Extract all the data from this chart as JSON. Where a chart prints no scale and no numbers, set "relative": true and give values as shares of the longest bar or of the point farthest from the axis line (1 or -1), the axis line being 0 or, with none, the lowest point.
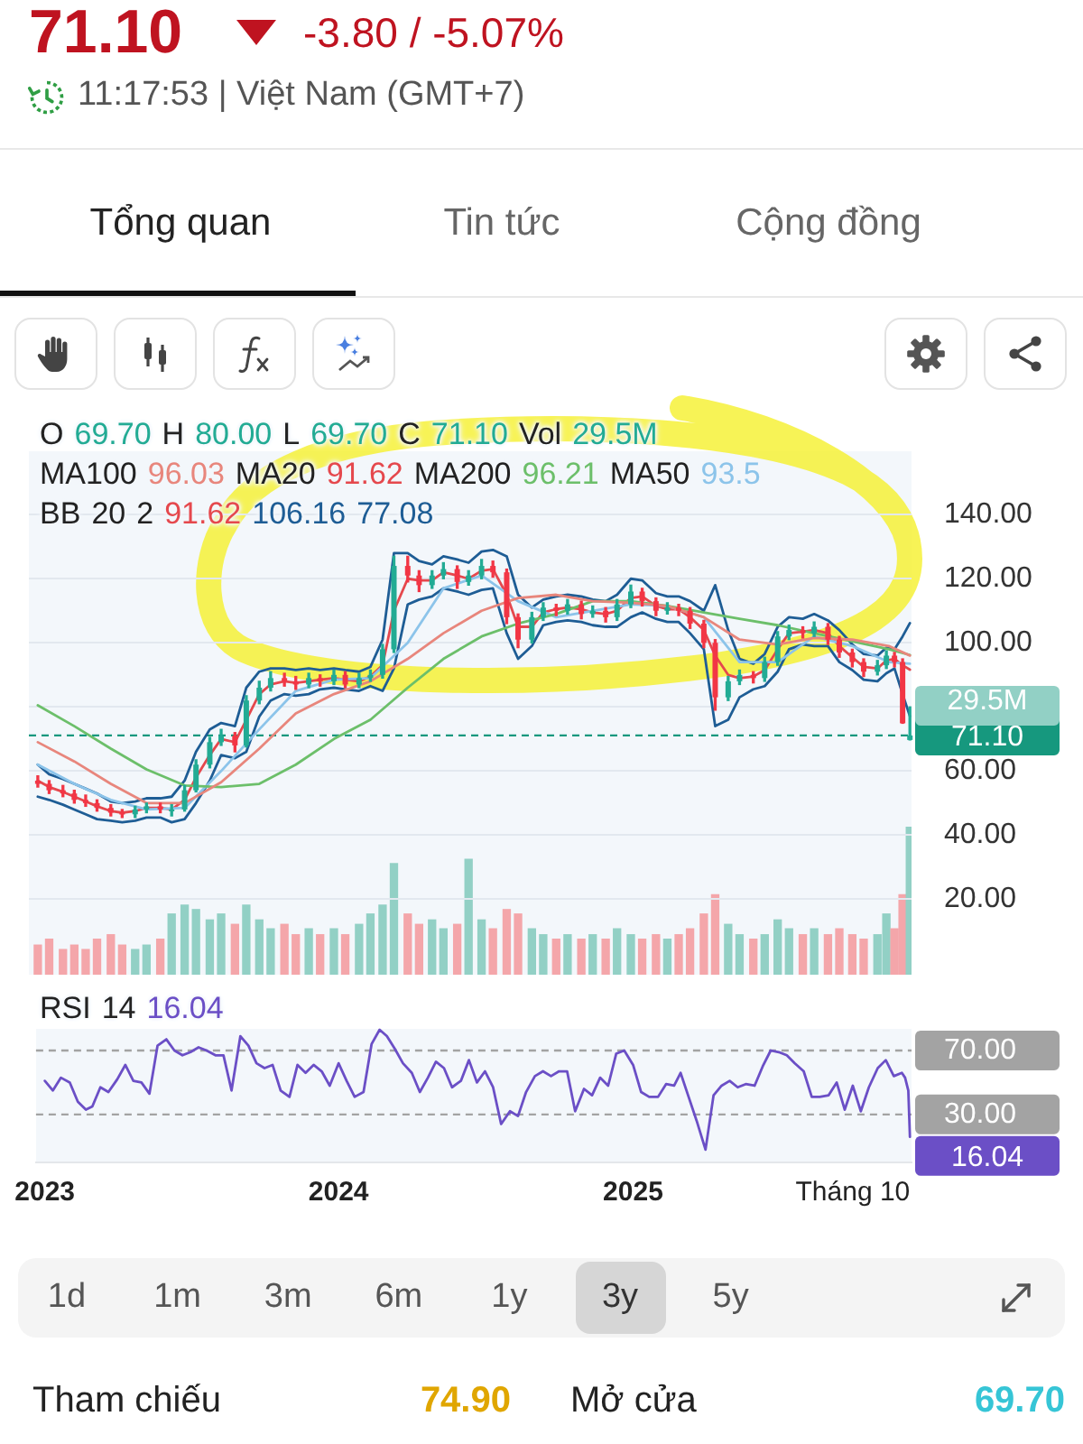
{
  "chart_data": [
    {
      "type": "other",
      "annotations": [
        "71.10",
        "-3.80 / -5.07%",
        "11:17:53 | Việt Nam (GMT+7)",
        "Tổng quan",
        "Tin tức",
        "Cộng đồng"
      ]
    },
    {
      "type": "candlestick",
      "x": [
        "2023-01-01",
        "2023-01-15",
        "2023-02-01",
        "2023-02-15",
        "2023-03-01",
        "2023-03-15",
        "2023-04-01",
        "2023-04-15",
        "2023-05-01",
        "2023-05-15",
        "2023-06-01",
        "2023-06-15",
        "2023-07-01",
        "2023-07-15",
        "2023-08-01",
        "2023-08-15",
        "2023-09-01",
        "2023-09-15",
        "2023-10-01",
        "2023-10-15",
        "2023-11-01",
        "2023-11-15",
        "2023-12-01",
        "2023-12-15",
        "2024-01-01",
        "2024-01-15",
        "2024-02-01",
        "2024-02-15",
        "2024-03-01",
        "2024-03-15",
        "2024-04-01",
        "2024-04-15",
        "2024-05-01",
        "2024-05-15",
        "2024-06-01",
        "2024-06-15",
        "2024-07-01",
        "2024-07-15",
        "2024-08-01",
        "2024-08-15",
        "2024-09-01",
        "2024-09-15",
        "2024-10-01",
        "2024-10-15",
        "2024-11-01",
        "2024-11-15",
        "2024-12-01",
        "2024-12-15",
        "2025-01-01",
        "2025-01-15",
        "2025-02-01",
        "2025-02-15",
        "2025-03-01",
        "2025-03-15",
        "2025-04-01",
        "2025-04-15",
        "2025-05-01",
        "2025-05-15",
        "2025-06-01",
        "2025-06-15",
        "2025-07-01",
        "2025-07-15",
        "2025-08-01",
        "2025-08-15",
        "2025-09-01",
        "2025-09-15",
        "2025-10-01",
        "2025-10-15",
        "2025-11-01",
        "2025-11-12",
        "2025-11-22",
        "2025-12-02",
        "2025-12-11"
      ],
      "ohlc": [
        [
          57,
          58.5,
          55,
          56
        ],
        [
          56,
          57,
          53,
          54
        ],
        [
          54,
          55.5,
          52,
          53
        ],
        [
          53,
          54,
          50,
          51
        ],
        [
          51,
          52.5,
          49,
          50
        ],
        [
          50,
          51,
          47.5,
          48.5
        ],
        [
          48.5,
          49.5,
          46,
          47
        ],
        [
          47,
          48,
          45.5,
          46.5
        ],
        [
          46.5,
          49,
          45.5,
          48
        ],
        [
          48,
          50,
          47,
          49
        ],
        [
          49,
          50,
          47,
          48
        ],
        [
          48,
          49.5,
          46,
          48
        ],
        [
          48,
          55.5,
          47.5,
          54
        ],
        [
          54,
          63.5,
          53.5,
          62
        ],
        [
          62,
          70.5,
          61,
          69
        ],
        [
          69,
          73,
          68,
          71
        ],
        [
          71,
          72,
          66,
          68
        ],
        [
          68,
          83.5,
          67.5,
          82
        ],
        [
          82,
          88,
          81,
          86
        ],
        [
          86,
          91,
          85,
          89
        ],
        [
          89,
          90.5,
          86.5,
          88
        ],
        [
          88,
          89.5,
          85.5,
          87
        ],
        [
          87,
          90.5,
          86,
          89
        ],
        [
          89,
          90,
          86.5,
          88
        ],
        [
          88,
          91.5,
          87,
          90
        ],
        [
          90,
          91,
          86,
          87
        ],
        [
          87,
          90.5,
          86,
          89
        ],
        [
          89,
          91.5,
          88,
          90
        ],
        [
          90,
          99.5,
          89,
          98
        ],
        [
          98,
          127,
          97,
          124
        ],
        [
          124,
          127,
          119,
          121
        ],
        [
          121,
          122.5,
          116,
          118
        ],
        [
          118,
          122.5,
          117,
          121
        ],
        [
          121,
          125,
          120,
          123
        ],
        [
          123,
          124,
          117,
          119
        ],
        [
          119,
          122.5,
          118,
          121
        ],
        [
          121,
          126,
          120,
          124
        ],
        [
          124,
          125.5,
          120.5,
          122
        ],
        [
          122,
          123,
          106,
          108
        ],
        [
          108,
          109,
          98.5,
          101
        ],
        [
          101,
          109.5,
          100,
          108
        ],
        [
          108,
          112.5,
          107,
          111
        ],
        [
          111,
          112,
          108.5,
          110
        ],
        [
          110,
          113.5,
          109,
          112
        ],
        [
          112,
          113,
          107.5,
          109
        ],
        [
          109,
          111.5,
          108,
          110
        ],
        [
          110,
          111,
          106.5,
          108
        ],
        [
          108,
          113.5,
          107,
          112
        ],
        [
          112,
          118,
          111,
          116
        ],
        [
          116,
          117,
          111.5,
          113
        ],
        [
          113,
          114,
          108.5,
          110
        ],
        [
          110,
          112.5,
          109,
          111
        ],
        [
          111,
          112,
          108.5,
          110
        ],
        [
          110,
          111,
          104.5,
          106
        ],
        [
          106,
          107,
          98.5,
          100
        ],
        [
          100,
          101,
          79,
          83
        ],
        [
          83,
          89.5,
          82,
          88
        ],
        [
          88,
          91.5,
          87,
          90
        ],
        [
          90,
          91,
          87.5,
          89
        ],
        [
          89,
          95.5,
          88,
          94
        ],
        [
          94,
          103.5,
          93,
          102
        ],
        [
          102,
          105.5,
          101,
          104
        ],
        [
          104,
          105,
          101.5,
          103
        ],
        [
          103,
          106.5,
          102,
          105
        ],
        [
          105,
          106,
          99.5,
          101
        ],
        [
          101,
          102,
          95.5,
          97
        ],
        [
          97,
          98,
          92.5,
          94
        ],
        [
          94,
          95,
          89.5,
          91
        ],
        [
          91,
          94.5,
          90,
          93
        ],
        [
          93,
          97.5,
          92,
          96
        ],
        [
          96,
          97,
          92.5,
          94
        ],
        [
          94,
          95,
          74.9,
          74.9
        ],
        [
          69.7,
          80,
          69.7,
          71.1
        ]
      ],
      "colors": [
        "#f23645",
        "#f23645",
        "#f23645",
        "#f23645",
        "#f23645",
        "#f23645",
        "#f23645",
        "#f23645",
        "#22ab94",
        "#22ab94",
        "#f23645",
        "#22ab94",
        "#22ab94",
        "#22ab94",
        "#22ab94",
        "#22ab94",
        "#f23645",
        "#22ab94",
        "#22ab94",
        "#22ab94",
        "#f23645",
        "#f23645",
        "#22ab94",
        "#f23645",
        "#22ab94",
        "#f23645",
        "#22ab94",
        "#22ab94",
        "#22ab94",
        "#22ab94",
        "#f23645",
        "#f23645",
        "#22ab94",
        "#22ab94",
        "#f23645",
        "#22ab94",
        "#22ab94",
        "#f23645",
        "#f23645",
        "#f23645",
        "#22ab94",
        "#22ab94",
        "#f23645",
        "#22ab94",
        "#f23645",
        "#22ab94",
        "#f23645",
        "#22ab94",
        "#22ab94",
        "#f23645",
        "#f23645",
        "#22ab94",
        "#f23645",
        "#f23645",
        "#f23645",
        "#f23645",
        "#22ab94",
        "#22ab94",
        "#f23645",
        "#22ab94",
        "#22ab94",
        "#22ab94",
        "#f23645",
        "#22ab94",
        "#f23645",
        "#f23645",
        "#f23645",
        "#f23645",
        "#22ab94",
        "#22ab94",
        "#f23645",
        "#f23645",
        "#22ab94"
      ],
      "series": [
        {
          "type": "line",
          "color": "#e8867c",
          "x": [
            "2023-01-01",
            "2023-02-15",
            "2023-04-01",
            "2023-05-15",
            "2023-07-01",
            "2023-08-15",
            "2023-10-01",
            "2023-11-15",
            "2024-01-01",
            "2024-02-15",
            "2024-04-01",
            "2024-05-15",
            "2024-07-01",
            "2024-08-15",
            "2024-10-01",
            "2024-11-15",
            "2025-01-01",
            "2025-02-15",
            "2025-04-01",
            "2025-05-15",
            "2025-07-01",
            "2025-08-15",
            "2025-10-01",
            "2025-11-15",
            "2025-12-11"
          ],
          "values": [
            69,
            63,
            56,
            50,
            50,
            56.5,
            67,
            78,
            84,
            88,
            95,
            103,
            110,
            114,
            115,
            113,
            112.5,
            111.5,
            108,
            101,
            99.5,
            101.5,
            101,
            99,
            96.03
          ]
        },
        {
          "type": "line",
          "color": "#6cbf6a",
          "x": [
            "2023-01-01",
            "2023-02-15",
            "2023-04-01",
            "2023-05-15",
            "2023-07-01",
            "2023-08-15",
            "2023-10-01",
            "2023-11-15",
            "2024-01-01",
            "2024-02-15",
            "2024-04-01",
            "2024-05-15",
            "2024-07-01",
            "2024-08-15",
            "2024-10-01",
            "2024-11-15",
            "2025-01-01",
            "2025-02-15",
            "2025-04-01",
            "2025-05-15",
            "2025-07-01",
            "2025-08-15",
            "2025-10-01",
            "2025-11-15",
            "2025-12-11"
          ],
          "values": [
            80.5,
            74,
            67,
            60.5,
            55.5,
            55,
            56,
            62,
            70,
            76,
            86,
            95,
            102,
            106,
            109,
            113,
            113,
            111.5,
            109.5,
            107.5,
            105.5,
            103,
            100.5,
            98,
            96.21
          ]
        },
        {
          "type": "line",
          "color": "#8cc4ea",
          "x": [
            "2023-01-01",
            "2023-02-15",
            "2023-04-01",
            "2023-05-15",
            "2023-07-01",
            "2023-08-15",
            "2023-10-01",
            "2023-11-15",
            "2024-01-01",
            "2024-02-15",
            "2024-04-01",
            "2024-05-15",
            "2024-07-01",
            "2024-08-15",
            "2024-10-01",
            "2024-11-15",
            "2025-01-01",
            "2025-02-15",
            "2025-04-01",
            "2025-05-15",
            "2025-07-01",
            "2025-08-15",
            "2025-10-01",
            "2025-11-15",
            "2025-12-11"
          ],
          "values": [
            62,
            56,
            51,
            48,
            48.5,
            60,
            73,
            85,
            88.5,
            89,
            100,
            117,
            121,
            113,
            108,
            110,
            112,
            111.5,
            108,
            94,
            94,
            102,
            99,
            94,
            93.5
          ]
        },
        {
          "type": "line",
          "color": "#e5484d",
          "values": [
            57,
            55,
            53.5,
            52,
            50.5,
            49,
            47.5,
            47,
            47.5,
            48.5,
            48.5,
            48,
            51,
            58,
            65,
            70,
            69,
            76,
            84,
            87,
            88,
            87.5,
            88,
            88.5,
            89,
            88.5,
            88,
            89.5,
            93,
            110,
            120,
            119.5,
            119.5,
            122,
            121,
            120,
            122.5,
            123,
            115,
            105,
            105,
            109.5,
            110.5,
            111,
            110.5,
            109.5,
            109,
            110,
            114,
            114.5,
            111.5,
            110.5,
            110.5,
            108,
            104,
            96,
            90,
            89,
            89.5,
            91.5,
            98,
            103,
            103.5,
            104,
            103,
            99,
            95.5,
            92.5,
            92,
            94.5,
            95,
            93,
            91.62
          ]
        },
        {
          "type": "line",
          "color": "#1e5d95",
          "values": [
            62,
            59,
            57.5,
            56,
            54.5,
            53,
            50.5,
            50,
            50.5,
            51.5,
            51.5,
            52,
            57,
            66,
            73,
            75,
            74,
            86,
            91,
            92,
            92,
            91.5,
            92,
            91.5,
            92,
            91.5,
            91,
            92.5,
            101,
            128,
            128,
            125.5,
            124.5,
            127,
            126,
            125,
            128.5,
            129,
            127,
            115,
            111,
            113.5,
            114.5,
            115,
            114.5,
            113.5,
            113,
            115,
            120,
            119.5,
            115.5,
            114.5,
            114.5,
            113,
            110,
            118,
            104,
            95,
            93.5,
            96.5,
            105,
            108,
            107.5,
            109,
            107,
            104,
            99.5,
            96.5,
            96,
            98.5,
            98,
            102,
            106.16
          ]
        },
        {
          "type": "line",
          "color": "#1e5d95",
          "values": [
            52,
            51,
            49.5,
            48,
            46.5,
            45,
            44.5,
            44,
            44.5,
            45.5,
            45.5,
            44,
            45,
            50,
            57,
            65,
            64,
            66,
            77,
            82,
            84,
            83.5,
            84,
            85.5,
            86,
            85.5,
            85,
            86.5,
            85,
            92,
            112,
            113.5,
            114.5,
            117,
            116,
            115,
            116.5,
            117,
            103,
            95,
            99,
            105.5,
            106.5,
            107,
            106.5,
            105.5,
            105,
            105,
            108,
            109.5,
            107.5,
            106.5,
            106.5,
            103,
            98,
            74,
            76,
            83,
            85.5,
            86.5,
            91,
            98,
            99.5,
            99,
            99,
            94,
            91.5,
            88.5,
            88,
            90.5,
            92,
            84,
            77.08
          ]
        }
      ],
      "xlim": [
        "2022-12-21",
        "2025-12-13"
      ],
      "ylim": [
        12,
        160
      ],
      "yticks": [
        {
          "value": 20,
          "label": "20.00"
        },
        {
          "value": 40,
          "label": "40.00"
        },
        {
          "value": 60,
          "label": "60.00"
        },
        {
          "value": 80,
          "label": null
        },
        {
          "value": 100,
          "label": "100.00"
        },
        {
          "value": 120,
          "label": "120.00"
        },
        {
          "value": 140,
          "label": "140.00"
        }
      ],
      "tick_labels": "y",
      "grid": "y",
      "annotations": [
        "O 69.70 H 80.00 L 69.70 C 71.10 Vol 29.5M",
        "MA100 96.03 MA20 91.62 MA200 96.21 MA50 93.5",
        "BB 20 2 91.62 106.16 77.08"
      ],
      "ref_lines": [
        {
          "axis": "y",
          "value": 71.1,
          "label": "71.10",
          "color": "#16987e",
          "line_style": "dashed"
        }
      ]
    },
    {
      "type": "bar",
      "relative": true,
      "x": [
        "2023-01-01",
        "2023-01-15",
        "2023-02-01",
        "2023-02-15",
        "2023-03-01",
        "2023-03-15",
        "2023-04-01",
        "2023-04-15",
        "2023-05-01",
        "2023-05-15",
        "2023-06-01",
        "2023-06-15",
        "2023-07-01",
        "2023-07-15",
        "2023-08-01",
        "2023-08-15",
        "2023-09-01",
        "2023-09-15",
        "2023-10-01",
        "2023-10-15",
        "2023-11-01",
        "2023-11-15",
        "2023-12-01",
        "2023-12-15",
        "2024-01-01",
        "2024-01-15",
        "2024-02-01",
        "2024-02-15",
        "2024-03-01",
        "2024-03-15",
        "2024-04-01",
        "2024-04-15",
        "2024-05-01",
        "2024-05-15",
        "2024-06-01",
        "2024-06-15",
        "2024-07-01",
        "2024-07-15",
        "2024-08-01",
        "2024-08-15",
        "2024-09-01",
        "2024-09-15",
        "2024-10-01",
        "2024-10-15",
        "2024-11-01",
        "2024-11-15",
        "2024-12-01",
        "2024-12-15",
        "2025-01-01",
        "2025-01-15",
        "2025-02-01",
        "2025-02-15",
        "2025-03-01",
        "2025-03-15",
        "2025-04-01",
        "2025-04-15",
        "2025-05-01",
        "2025-05-15",
        "2025-06-01",
        "2025-06-15",
        "2025-07-01",
        "2025-07-15",
        "2025-08-01",
        "2025-08-15",
        "2025-09-01",
        "2025-09-15",
        "2025-10-01",
        "2025-10-15",
        "2025-11-01",
        "2025-11-12",
        "2025-11-22",
        "2025-12-02",
        "2025-12-11"
      ],
      "values": [
        0.2,
        0.24,
        0.17,
        0.2,
        0.17,
        0.24,
        0.27,
        0.2,
        0.17,
        0.2,
        0.24,
        0.41,
        0.47,
        0.44,
        0.37,
        0.41,
        0.34,
        0.47,
        0.37,
        0.31,
        0.34,
        0.27,
        0.31,
        0.27,
        0.31,
        0.27,
        0.34,
        0.41,
        0.47,
        0.75,
        0.41,
        0.34,
        0.37,
        0.31,
        0.34,
        0.78,
        0.37,
        0.31,
        0.44,
        0.41,
        0.31,
        0.27,
        0.24,
        0.27,
        0.24,
        0.27,
        0.24,
        0.31,
        0.27,
        0.24,
        0.27,
        0.24,
        0.27,
        0.31,
        0.41,
        0.54,
        0.34,
        0.27,
        0.24,
        0.27,
        0.37,
        0.31,
        0.27,
        0.31,
        0.27,
        0.31,
        0.27,
        0.24,
        0.27,
        0.41,
        0.31,
        0.54,
        1
      ],
      "colors": [
        "#f4a6aa",
        "#f4a6aa",
        "#f4a6aa",
        "#f4a6aa",
        "#f4a6aa",
        "#f4a6aa",
        "#f4a6aa",
        "#f4a6aa",
        "#92d0c5",
        "#92d0c5",
        "#f4a6aa",
        "#92d0c5",
        "#92d0c5",
        "#92d0c5",
        "#92d0c5",
        "#92d0c5",
        "#f4a6aa",
        "#92d0c5",
        "#92d0c5",
        "#92d0c5",
        "#f4a6aa",
        "#f4a6aa",
        "#92d0c5",
        "#f4a6aa",
        "#92d0c5",
        "#f4a6aa",
        "#92d0c5",
        "#92d0c5",
        "#92d0c5",
        "#92d0c5",
        "#f4a6aa",
        "#f4a6aa",
        "#92d0c5",
        "#92d0c5",
        "#f4a6aa",
        "#92d0c5",
        "#92d0c5",
        "#f4a6aa",
        "#f4a6aa",
        "#f4a6aa",
        "#92d0c5",
        "#92d0c5",
        "#f4a6aa",
        "#92d0c5",
        "#f4a6aa",
        "#92d0c5",
        "#f4a6aa",
        "#92d0c5",
        "#92d0c5",
        "#f4a6aa",
        "#f4a6aa",
        "#92d0c5",
        "#f4a6aa",
        "#f4a6aa",
        "#f4a6aa",
        "#f4a6aa",
        "#92d0c5",
        "#92d0c5",
        "#f4a6aa",
        "#92d0c5",
        "#92d0c5",
        "#92d0c5",
        "#f4a6aa",
        "#92d0c5",
        "#f4a6aa",
        "#f4a6aa",
        "#f4a6aa",
        "#f4a6aa",
        "#92d0c5",
        "#92d0c5",
        "#f4a6aa",
        "#f4a6aa",
        "#92d0c5"
      ],
      "xlim": [
        "2022-12-21",
        "2025-12-13"
      ],
      "tick_labels": false,
      "annotations": [
        "29.5M"
      ]
    },
    {
      "type": "line",
      "x": [
        "2023-01-01",
        "2023-01-11",
        "2023-01-21",
        "2023-02-01",
        "2023-02-11",
        "2023-02-21",
        "2023-03-01",
        "2023-03-11",
        "2023-03-21",
        "2023-04-01",
        "2023-04-11",
        "2023-04-21",
        "2023-05-01",
        "2023-05-11",
        "2023-05-21",
        "2023-06-01",
        "2023-06-11",
        "2023-06-21",
        "2023-07-01",
        "2023-07-11",
        "2023-07-21",
        "2023-08-01",
        "2023-08-11",
        "2023-08-21",
        "2023-09-01",
        "2023-09-11",
        "2023-09-21",
        "2023-10-01",
        "2023-10-11",
        "2023-10-21",
        "2023-11-01",
        "2023-11-11",
        "2023-11-21",
        "2023-12-01",
        "2023-12-11",
        "2023-12-21",
        "2024-01-01",
        "2024-01-11",
        "2024-01-21",
        "2024-02-01",
        "2024-02-11",
        "2024-02-21",
        "2024-03-01",
        "2024-03-11",
        "2024-03-21",
        "2024-04-01",
        "2024-04-11",
        "2024-04-21",
        "2024-05-01",
        "2024-05-11",
        "2024-05-21",
        "2024-06-01",
        "2024-06-11",
        "2024-06-21",
        "2024-07-01",
        "2024-07-11",
        "2024-07-21",
        "2024-08-01",
        "2024-08-11",
        "2024-08-21",
        "2024-09-01",
        "2024-09-11",
        "2024-09-21",
        "2024-10-01",
        "2024-10-11",
        "2024-10-21",
        "2024-11-01",
        "2024-11-11",
        "2024-11-21",
        "2024-12-01",
        "2024-12-11",
        "2024-12-21",
        "2025-01-01",
        "2025-01-11",
        "2025-01-21",
        "2025-02-01",
        "2025-02-11",
        "2025-02-21",
        "2025-03-01",
        "2025-03-11",
        "2025-03-21",
        "2025-04-01",
        "2025-04-11",
        "2025-04-21",
        "2025-05-01",
        "2025-05-11",
        "2025-05-21",
        "2025-06-01",
        "2025-06-11",
        "2025-06-21",
        "2025-07-01",
        "2025-07-11",
        "2025-07-21",
        "2025-08-01",
        "2025-08-11",
        "2025-08-21",
        "2025-09-01",
        "2025-09-11",
        "2025-09-21",
        "2025-10-01",
        "2025-10-11",
        "2025-10-21",
        "2025-11-01",
        "2025-11-11",
        "2025-11-21",
        "2025-12-01",
        "2025-12-05",
        "2025-12-09",
        "2025-12-11"
      ],
      "series": [
        {
          "color": "#6b4fc6",
          "values": [
            51,
            45,
            53,
            50,
            38,
            33,
            35,
            47,
            44,
            52,
            61,
            51,
            50,
            43,
            73,
            77,
            70,
            67,
            69,
            72,
            70,
            67,
            67,
            45,
            79,
            73,
            62,
            59,
            61,
            45,
            41,
            61,
            56,
            61,
            57,
            48,
            62,
            51,
            41,
            44,
            74,
            83,
            79,
            71,
            62,
            56,
            44,
            53,
            63,
            59,
            47,
            51,
            64,
            50,
            57,
            47,
            24,
            32,
            29,
            44,
            54,
            57,
            54,
            57,
            57,
            32,
            46,
            42,
            53,
            48,
            68,
            70,
            61,
            44,
            41,
            41,
            49,
            48,
            56,
            41,
            26,
            8,
            42,
            48,
            51,
            47,
            49,
            48,
            60,
            70,
            69,
            67,
            62,
            57,
            41,
            41,
            42,
            50,
            33,
            48,
            32,
            47,
            59,
            64,
            54,
            56,
            53,
            45,
            16.04
          ],
          "value_labels": [
            null,
            null,
            null,
            null,
            null,
            null,
            null,
            null,
            null,
            null,
            null,
            null,
            null,
            null,
            null,
            null,
            null,
            null,
            null,
            null,
            null,
            null,
            null,
            null,
            null,
            null,
            null,
            null,
            null,
            null,
            null,
            null,
            null,
            null,
            null,
            null,
            null,
            null,
            null,
            null,
            null,
            null,
            null,
            null,
            null,
            null,
            null,
            null,
            null,
            null,
            null,
            null,
            null,
            null,
            null,
            null,
            null,
            null,
            null,
            null,
            null,
            null,
            null,
            null,
            null,
            null,
            null,
            null,
            null,
            null,
            null,
            null,
            null,
            null,
            null,
            null,
            null,
            null,
            null,
            null,
            null,
            null,
            null,
            null,
            null,
            null,
            null,
            null,
            null,
            null,
            null,
            null,
            null,
            null,
            null,
            null,
            null,
            null,
            null,
            null,
            null,
            null,
            null,
            null,
            null,
            null,
            null,
            null,
            "16.04"
          ]
        }
      ],
      "xlim": [
        "2022-12-21",
        "2025-12-13"
      ],
      "xticks": [
        "2023",
        "2024",
        "2025",
        {
          "value": "2025-10",
          "label": "Tháng 10"
        }
      ],
      "ylim": [
        0,
        84
      ],
      "yticks": [
        {
          "value": 70,
          "label": "70.00"
        },
        {
          "value": 30,
          "label": "30.00"
        }
      ],
      "annotations": [
        "RSI 14 16.04"
      ],
      "ref_lines": [
        {
          "axis": "y",
          "value": 70,
          "color": "#a3a3a3",
          "line_style": "dashed"
        },
        {
          "axis": "y",
          "value": 30,
          "color": "#a3a3a3",
          "line_style": "dashed"
        }
      ]
    },
    {
      "type": "other",
      "annotations": [
        "1d",
        "1m",
        "3m",
        "6m",
        "1y",
        "3y",
        "5y",
        "Tham chiếu",
        "74.90",
        "Mở cửa",
        "69.70"
      ]
    }
  ]
}
